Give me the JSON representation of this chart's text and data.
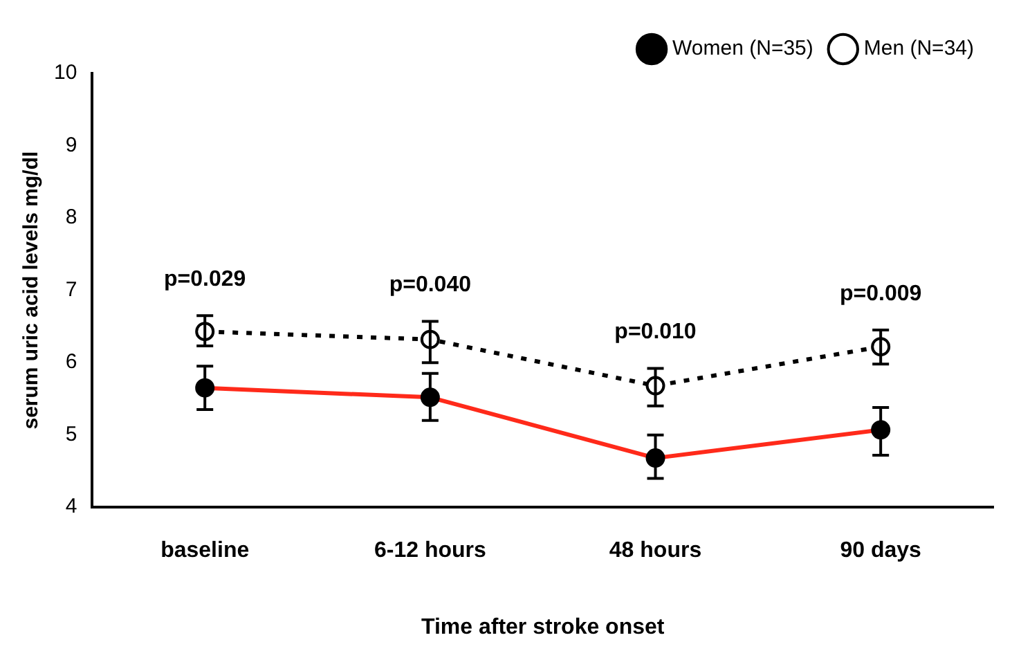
{
  "chart_data": {
    "type": "line",
    "xlabel": "Time after stroke onset",
    "ylabel": "serum uric acid levels mg/dl",
    "categories": [
      "baseline",
      "6-12 hours",
      "48 hours",
      "90 days"
    ],
    "series": [
      {
        "name": "Women (N=35)",
        "color": "#ff2a1a",
        "values": [
          5.65,
          5.52,
          4.68,
          5.07
        ],
        "errors": [
          [
            5.35,
            5.95
          ],
          [
            5.2,
            5.85
          ],
          [
            4.4,
            5.0
          ],
          [
            4.72,
            5.38
          ]
        ],
        "line_style": "solid",
        "marker": "circle"
      },
      {
        "name": "Men (N=34)",
        "color": "#000000",
        "values": [
          6.43,
          6.32,
          5.68,
          6.22
        ],
        "errors": [
          [
            6.23,
            6.65
          ],
          [
            6.0,
            6.57
          ],
          [
            5.4,
            5.92
          ],
          [
            5.98,
            6.45
          ]
        ],
        "line_style": "dotted",
        "marker": "circle"
      }
    ],
    "ylim": [
      4,
      10
    ],
    "yticks": [
      4,
      5,
      6,
      7,
      8,
      9,
      10
    ],
    "grid": false,
    "legend": "top right",
    "annotations": [
      "p=0.029",
      "p=0.040",
      "p=0.010",
      "p=0.009"
    ]
  }
}
